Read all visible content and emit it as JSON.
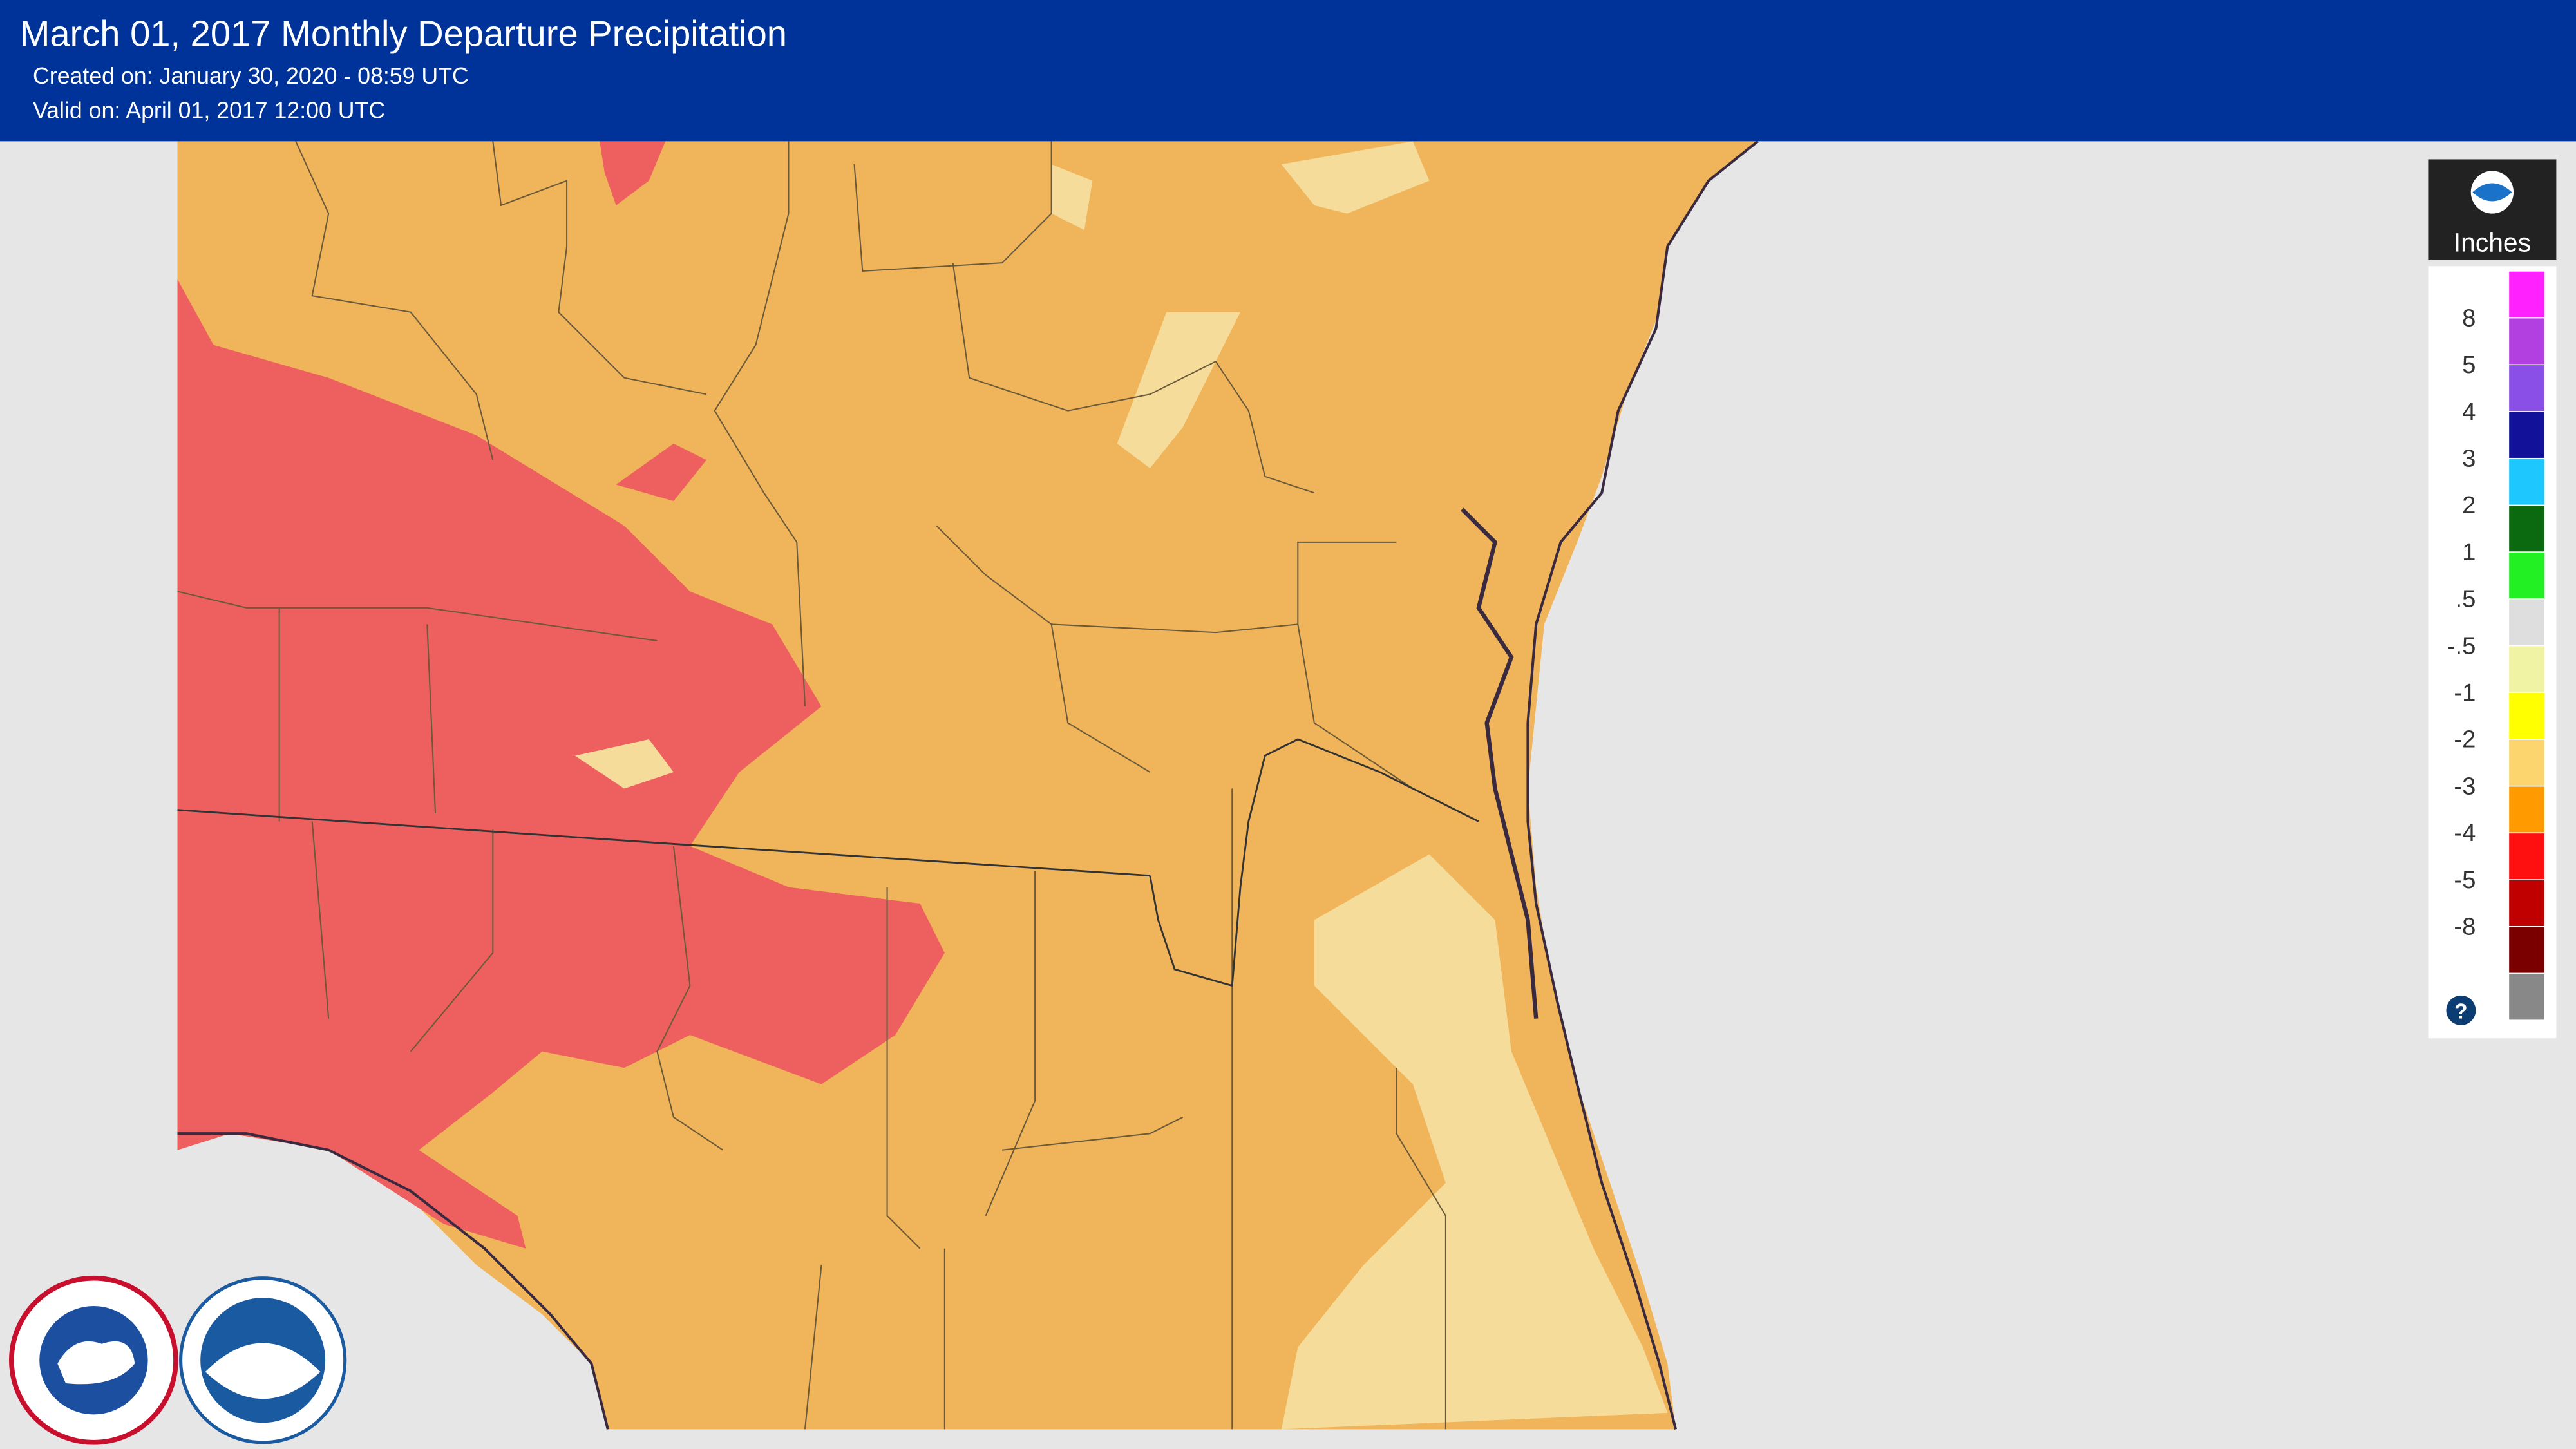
{
  "header": {
    "title": "March 01, 2017 Monthly Departure Precipitation",
    "created": "Created on: January 30, 2020 - 08:59 UTC",
    "valid": "Valid on: April 01, 2017 12:00 UTC"
  },
  "legend": {
    "title": "Inches",
    "colors": [
      "#ff22ff",
      "#b23fe0",
      "#8a4fe6",
      "#111199",
      "#1ec8ff",
      "#0b6a10",
      "#22f022",
      "#dedede",
      "#f0f2a4",
      "#ffff00",
      "#fdd56e",
      "#ff9a00",
      "#ff1010",
      "#c00000",
      "#7a0000",
      "#888888"
    ],
    "labels": [
      "8",
      "5",
      "4",
      "3",
      "2",
      "1",
      ".5",
      "-.5",
      "-1",
      "-2",
      "-3",
      "-4",
      "-5",
      "-8"
    ]
  }
}
